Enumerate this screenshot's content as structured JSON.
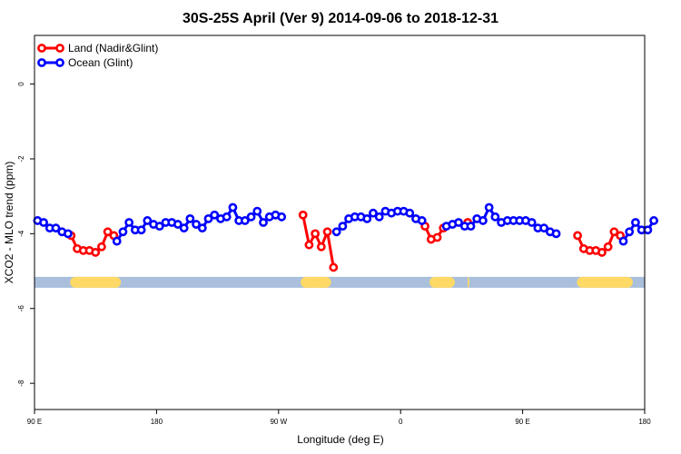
{
  "chart_data": {
    "type": "line",
    "title": "30S-25S April (Ver 9)   2014-09-06 to 2018-12-31",
    "xlabel": "Longitude (deg E)",
    "ylabel": "XCO2 - MLO trend (ppm)",
    "xlim": [
      90,
      450
    ],
    "ylim": [
      -8.7,
      1.3
    ],
    "x_ticks": [
      {
        "value": 90,
        "label": "90 E"
      },
      {
        "value": 162,
        "label": "180"
      },
      {
        "value": 234,
        "label": "90 W"
      },
      {
        "value": 306,
        "label": "0"
      },
      {
        "value": 378,
        "label": "90 E"
      },
      {
        "value": 450,
        "label": "180"
      }
    ],
    "y_ticks": [
      {
        "value": 0,
        "label": "0"
      },
      {
        "value": -2,
        "label": "-2"
      },
      {
        "value": -4,
        "label": "-4"
      },
      {
        "value": -6,
        "label": "-6"
      },
      {
        "value": -8,
        "label": "-8"
      }
    ],
    "grid": false,
    "legend_position": "top-left",
    "series": [
      {
        "name": "Land (Nadir&Glint)",
        "color": "#ff0000",
        "segments": [
          [
            [
              111.6,
              -4.05
            ],
            [
              115.2,
              -4.4
            ],
            [
              118.8,
              -4.45
            ],
            [
              122.4,
              -4.45
            ],
            [
              126.0,
              -4.5
            ],
            [
              129.6,
              -4.35
            ],
            [
              133.2,
              -3.95
            ],
            [
              136.8,
              -4.05
            ]
          ],
          [
            [
              248.4,
              -3.5
            ],
            [
              252.0,
              -4.3
            ],
            [
              255.6,
              -4.0
            ],
            [
              259.2,
              -4.35
            ],
            [
              262.8,
              -3.95
            ],
            [
              266.4,
              -4.9
            ]
          ],
          [
            [
              320.4,
              -3.8
            ],
            [
              324.0,
              -4.15
            ],
            [
              327.6,
              -4.1
            ],
            [
              331.2,
              -3.85
            ]
          ],
          [
            [
              345.6,
              -3.7
            ]
          ],
          [
            [
              410.4,
              -4.05
            ],
            [
              414.0,
              -4.4
            ],
            [
              417.6,
              -4.45
            ],
            [
              421.2,
              -4.45
            ],
            [
              424.8,
              -4.5
            ],
            [
              428.4,
              -4.35
            ],
            [
              432.0,
              -3.95
            ],
            [
              435.6,
              -4.05
            ]
          ]
        ]
      },
      {
        "name": "Ocean (Glint)",
        "color": "#0000ff",
        "segments": [
          [
            [
              91.8,
              -3.65
            ],
            [
              95.4,
              -3.7
            ],
            [
              99.0,
              -3.85
            ],
            [
              102.6,
              -3.85
            ],
            [
              106.2,
              -3.95
            ],
            [
              109.8,
              -4.0
            ]
          ],
          [
            [
              138.6,
              -4.2
            ],
            [
              142.2,
              -3.95
            ],
            [
              145.8,
              -3.7
            ],
            [
              149.4,
              -3.9
            ],
            [
              153.0,
              -3.9
            ],
            [
              156.6,
              -3.65
            ],
            [
              160.2,
              -3.75
            ],
            [
              163.8,
              -3.8
            ],
            [
              167.4,
              -3.7
            ],
            [
              171.0,
              -3.7
            ],
            [
              174.6,
              -3.75
            ],
            [
              178.2,
              -3.85
            ],
            [
              181.8,
              -3.6
            ],
            [
              185.4,
              -3.75
            ],
            [
              189.0,
              -3.85
            ],
            [
              192.6,
              -3.6
            ],
            [
              196.2,
              -3.5
            ],
            [
              199.8,
              -3.6
            ],
            [
              203.4,
              -3.55
            ],
            [
              207.0,
              -3.3
            ],
            [
              210.6,
              -3.65
            ],
            [
              214.2,
              -3.65
            ],
            [
              217.8,
              -3.55
            ],
            [
              221.4,
              -3.4
            ],
            [
              225.0,
              -3.7
            ],
            [
              228.6,
              -3.55
            ],
            [
              232.2,
              -3.5
            ],
            [
              235.8,
              -3.55
            ]
          ],
          [
            [
              268.2,
              -3.95
            ],
            [
              271.8,
              -3.8
            ],
            [
              275.4,
              -3.6
            ],
            [
              279.0,
              -3.55
            ],
            [
              282.6,
              -3.55
            ],
            [
              286.2,
              -3.6
            ],
            [
              289.8,
              -3.45
            ],
            [
              293.4,
              -3.55
            ],
            [
              297.0,
              -3.4
            ],
            [
              300.6,
              -3.45
            ],
            [
              304.2,
              -3.4
            ],
            [
              307.8,
              -3.4
            ],
            [
              311.4,
              -3.45
            ],
            [
              315.0,
              -3.6
            ],
            [
              318.6,
              -3.65
            ]
          ],
          [
            [
              333.0,
              -3.8
            ],
            [
              336.6,
              -3.75
            ],
            [
              340.2,
              -3.7
            ],
            [
              343.8,
              -3.8
            ],
            [
              347.4,
              -3.8
            ],
            [
              351.0,
              -3.6
            ],
            [
              354.6,
              -3.65
            ],
            [
              358.2,
              -3.3
            ],
            [
              361.8,
              -3.55
            ],
            [
              365.4,
              -3.7
            ],
            [
              369.0,
              -3.65
            ],
            [
              372.6,
              -3.65
            ],
            [
              376.2,
              -3.65
            ],
            [
              379.8,
              -3.65
            ],
            [
              383.4,
              -3.7
            ],
            [
              387.0,
              -3.85
            ],
            [
              390.6,
              -3.85
            ],
            [
              394.2,
              -3.95
            ],
            [
              397.8,
              -4.0
            ]
          ],
          [
            [
              437.4,
              -4.2
            ],
            [
              441.0,
              -3.95
            ],
            [
              444.6,
              -3.7
            ],
            [
              448.2,
              -3.9
            ],
            [
              451.8,
              -3.9
            ],
            [
              455.4,
              -3.65
            ]
          ]
        ]
      }
    ],
    "surface_band": {
      "y": -5.3,
      "ocean_color": "#a9bfdc",
      "land_color": "#ffd966",
      "land_ranges": [
        [
          111,
          141
        ],
        [
          247,
          265
        ],
        [
          323,
          338
        ],
        [
          345.5,
          346.5
        ],
        [
          410,
          443
        ]
      ]
    }
  }
}
